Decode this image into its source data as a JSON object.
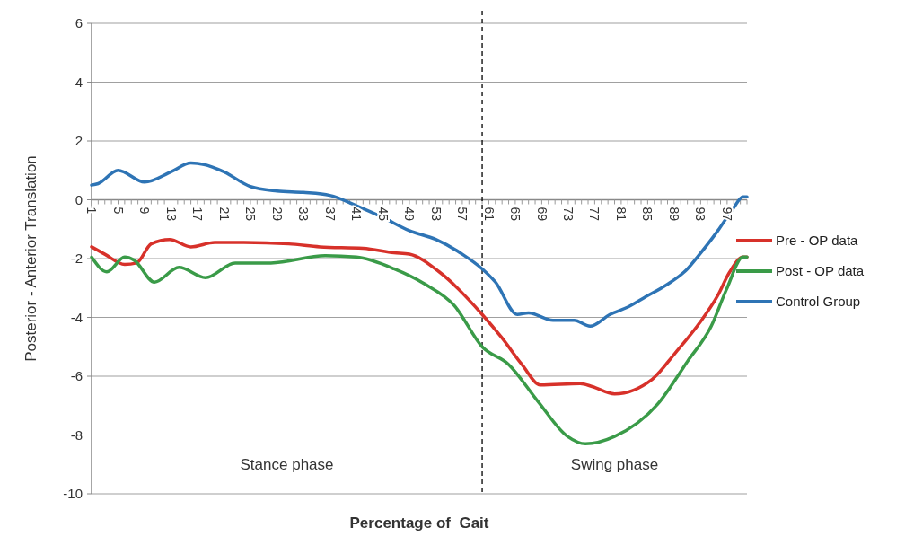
{
  "chart_data": {
    "type": "line",
    "xlabel": "Percentage of  Gait",
    "ylabel": "Posterior - Anterior Translation",
    "xlim": [
      1,
      100
    ],
    "xticks": [
      1,
      5,
      9,
      13,
      17,
      21,
      25,
      29,
      33,
      37,
      41,
      45,
      49,
      53,
      57,
      61,
      65,
      69,
      73,
      77,
      81,
      85,
      89,
      93,
      97
    ],
    "ylim": [
      -10,
      6
    ],
    "yticks": [
      -10,
      -8,
      -6,
      -4,
      -2,
      0,
      2,
      4,
      6
    ],
    "grid": "y",
    "legend": "right",
    "line_style": "solid",
    "marker": "none",
    "ref_lines": [
      {
        "axis": "x",
        "value": 60,
        "line_style": "dashed",
        "color": "#000000"
      }
    ],
    "annotations": [
      "Stance phase",
      "Swing phase"
    ],
    "series": [
      {
        "name": "Pre - OP data",
        "color": "#d7312a",
        "x": [
          1,
          3,
          6,
          7.8,
          10,
          12.8,
          16,
          19.6,
          24,
          30.8,
          35.5,
          42,
          46.7,
          49,
          53.5,
          60,
          63,
          66,
          68.8,
          74.8,
          76.6,
          80,
          85.7,
          89.2,
          92.8,
          95.6,
          97.4,
          99.4,
          100
        ],
        "values": [
          -1.6,
          -1.85,
          -2.2,
          -2.15,
          -1.5,
          -1.35,
          -1.6,
          -1.45,
          -1.45,
          -1.5,
          -1.6,
          -1.65,
          -1.8,
          -1.85,
          -2.45,
          -3.9,
          -4.7,
          -5.6,
          -6.3,
          -6.25,
          -6.35,
          -6.6,
          -6.1,
          -5.2,
          -4.2,
          -3.25,
          -2.45,
          -1.95,
          -1.95
        ]
      },
      {
        "name": "Post - OP data",
        "color": "#3a9b48",
        "x": [
          1,
          3.3,
          6,
          7.4,
          10.5,
          14.2,
          18.2,
          22.7,
          28.1,
          36.3,
          41,
          46.7,
          51.2,
          55.8,
          60,
          64,
          68.4,
          72.9,
          75.6,
          80,
          86.5,
          91,
          94.6,
          96.9,
          99.4,
          100
        ],
        "values": [
          -1.95,
          -2.45,
          -1.95,
          -2.05,
          -2.8,
          -2.3,
          -2.65,
          -2.15,
          -2.15,
          -1.9,
          -1.95,
          -2.35,
          -2.85,
          -3.6,
          -5.0,
          -5.6,
          -6.85,
          -8.05,
          -8.3,
          -8.05,
          -6.95,
          -5.5,
          -4.3,
          -3.05,
          -1.95,
          -1.95
        ]
      },
      {
        "name": "Control Group",
        "color": "#2e74b5",
        "x": [
          1,
          2,
          5,
          9,
          13,
          16,
          18,
          21,
          25,
          29,
          33,
          37,
          41,
          45,
          49,
          53,
          57,
          60,
          62,
          65.3,
          67,
          70.7,
          73.9,
          76.3,
          79.3,
          82,
          84.7,
          87.8,
          91,
          92.5,
          95.6,
          97.9,
          99.4,
          100
        ],
        "values": [
          0.5,
          0.55,
          1.0,
          0.6,
          0.95,
          1.25,
          1.2,
          0.95,
          0.45,
          0.3,
          0.25,
          0.15,
          -0.2,
          -0.6,
          -1.05,
          -1.35,
          -1.85,
          -2.35,
          -2.8,
          -3.9,
          -3.85,
          -4.1,
          -4.1,
          -4.3,
          -3.9,
          -3.65,
          -3.3,
          -2.9,
          -2.35,
          -1.95,
          -1.05,
          -0.3,
          0.1,
          0.1
        ]
      }
    ]
  }
}
